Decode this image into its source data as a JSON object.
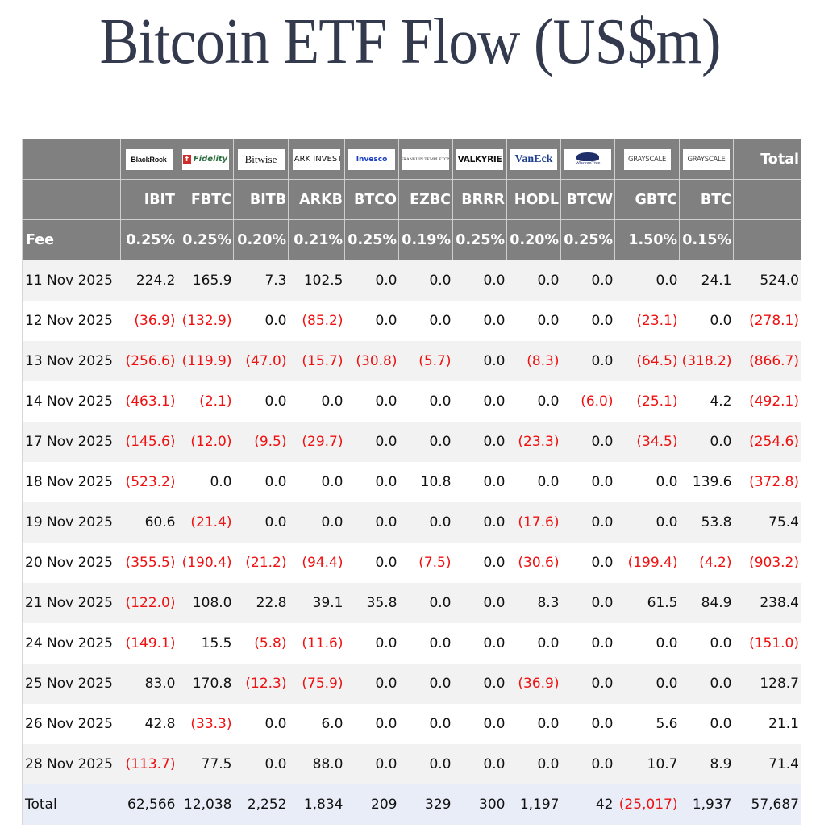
{
  "title": "Bitcoin ETF Flow (US$m)",
  "header": {
    "issuers": [
      {
        "name": "BlackRock",
        "logo": "blackrock-logo"
      },
      {
        "name": "Fidelity",
        "logo": "fidelity-logo"
      },
      {
        "name": "Bitwise",
        "logo": "bitwise-logo"
      },
      {
        "name": "ARK INVEST",
        "logo": "ark-invest-logo"
      },
      {
        "name": "Invesco",
        "logo": "invesco-logo"
      },
      {
        "name": "FRANKLIN TEMPLETON",
        "logo": "franklin-templeton-logo"
      },
      {
        "name": "VALKYRIE",
        "logo": "valkyrie-logo"
      },
      {
        "name": "VanEck",
        "logo": "vaneck-logo"
      },
      {
        "name": "WisdomTree",
        "logo": "wisdomtree-logo"
      },
      {
        "name": "GRAYSCALE",
        "logo": "grayscale-logo"
      },
      {
        "name": "GRAYSCALE",
        "logo": "grayscale-logo"
      }
    ],
    "total_label": "Total",
    "tickers": [
      "IBIT",
      "FBTC",
      "BITB",
      "ARKB",
      "BTCO",
      "EZBC",
      "BRRR",
      "HODL",
      "BTCW",
      "GBTC",
      "BTC"
    ],
    "fee_label": "Fee",
    "fees": [
      "0.25%",
      "0.25%",
      "0.20%",
      "0.21%",
      "0.25%",
      "0.19%",
      "0.25%",
      "0.20%",
      "0.25%",
      "1.50%",
      "0.15%"
    ]
  },
  "colors": {
    "header_bg": "#808080",
    "negative": "#ee1111",
    "title": "#343a4e",
    "total_row_bg": "#e9edf7",
    "stripe_bg": "#f2f2f2"
  },
  "rows": [
    {
      "date": "11 Nov 2025",
      "values": [
        "224.2",
        "165.9",
        "7.3",
        "102.5",
        "0.0",
        "0.0",
        "0.0",
        "0.0",
        "0.0",
        "0.0",
        "24.1",
        "524.0"
      ]
    },
    {
      "date": "12 Nov 2025",
      "values": [
        "(36.9)",
        "(132.9)",
        "0.0",
        "(85.2)",
        "0.0",
        "0.0",
        "0.0",
        "0.0",
        "0.0",
        "(23.1)",
        "0.0",
        "(278.1)"
      ]
    },
    {
      "date": "13 Nov 2025",
      "values": [
        "(256.6)",
        "(119.9)",
        "(47.0)",
        "(15.7)",
        "(30.8)",
        "(5.7)",
        "0.0",
        "(8.3)",
        "0.0",
        "(64.5)",
        "(318.2)",
        "(866.7)"
      ]
    },
    {
      "date": "14 Nov 2025",
      "values": [
        "(463.1)",
        "(2.1)",
        "0.0",
        "0.0",
        "0.0",
        "0.0",
        "0.0",
        "0.0",
        "(6.0)",
        "(25.1)",
        "4.2",
        "(492.1)"
      ]
    },
    {
      "date": "17 Nov 2025",
      "values": [
        "(145.6)",
        "(12.0)",
        "(9.5)",
        "(29.7)",
        "0.0",
        "0.0",
        "0.0",
        "(23.3)",
        "0.0",
        "(34.5)",
        "0.0",
        "(254.6)"
      ]
    },
    {
      "date": "18 Nov 2025",
      "values": [
        "(523.2)",
        "0.0",
        "0.0",
        "0.0",
        "0.0",
        "10.8",
        "0.0",
        "0.0",
        "0.0",
        "0.0",
        "139.6",
        "(372.8)"
      ]
    },
    {
      "date": "19 Nov 2025",
      "values": [
        "60.6",
        "(21.4)",
        "0.0",
        "0.0",
        "0.0",
        "0.0",
        "0.0",
        "(17.6)",
        "0.0",
        "0.0",
        "53.8",
        "75.4"
      ]
    },
    {
      "date": "20 Nov 2025",
      "values": [
        "(355.5)",
        "(190.4)",
        "(21.2)",
        "(94.4)",
        "0.0",
        "(7.5)",
        "0.0",
        "(30.6)",
        "0.0",
        "(199.4)",
        "(4.2)",
        "(903.2)"
      ]
    },
    {
      "date": "21 Nov 2025",
      "values": [
        "(122.0)",
        "108.0",
        "22.8",
        "39.1",
        "35.8",
        "0.0",
        "0.0",
        "8.3",
        "0.0",
        "61.5",
        "84.9",
        "238.4"
      ]
    },
    {
      "date": "24 Nov 2025",
      "values": [
        "(149.1)",
        "15.5",
        "(5.8)",
        "(11.6)",
        "0.0",
        "0.0",
        "0.0",
        "0.0",
        "0.0",
        "0.0",
        "0.0",
        "(151.0)"
      ]
    },
    {
      "date": "25 Nov 2025",
      "values": [
        "83.0",
        "170.8",
        "(12.3)",
        "(75.9)",
        "0.0",
        "0.0",
        "0.0",
        "(36.9)",
        "0.0",
        "0.0",
        "0.0",
        "128.7"
      ]
    },
    {
      "date": "26 Nov 2025",
      "values": [
        "42.8",
        "(33.3)",
        "0.0",
        "6.0",
        "0.0",
        "0.0",
        "0.0",
        "0.0",
        "0.0",
        "5.6",
        "0.0",
        "21.1"
      ]
    },
    {
      "date": "28 Nov 2025",
      "values": [
        "(113.7)",
        "77.5",
        "0.0",
        "88.0",
        "0.0",
        "0.0",
        "0.0",
        "0.0",
        "0.0",
        "10.7",
        "8.9",
        "71.4"
      ]
    }
  ],
  "total_row": {
    "label": "Total",
    "values": [
      "62,566",
      "12,038",
      "2,252",
      "1,834",
      "209",
      "329",
      "300",
      "1,197",
      "42",
      "(25,017)",
      "1,937",
      "57,687"
    ]
  }
}
